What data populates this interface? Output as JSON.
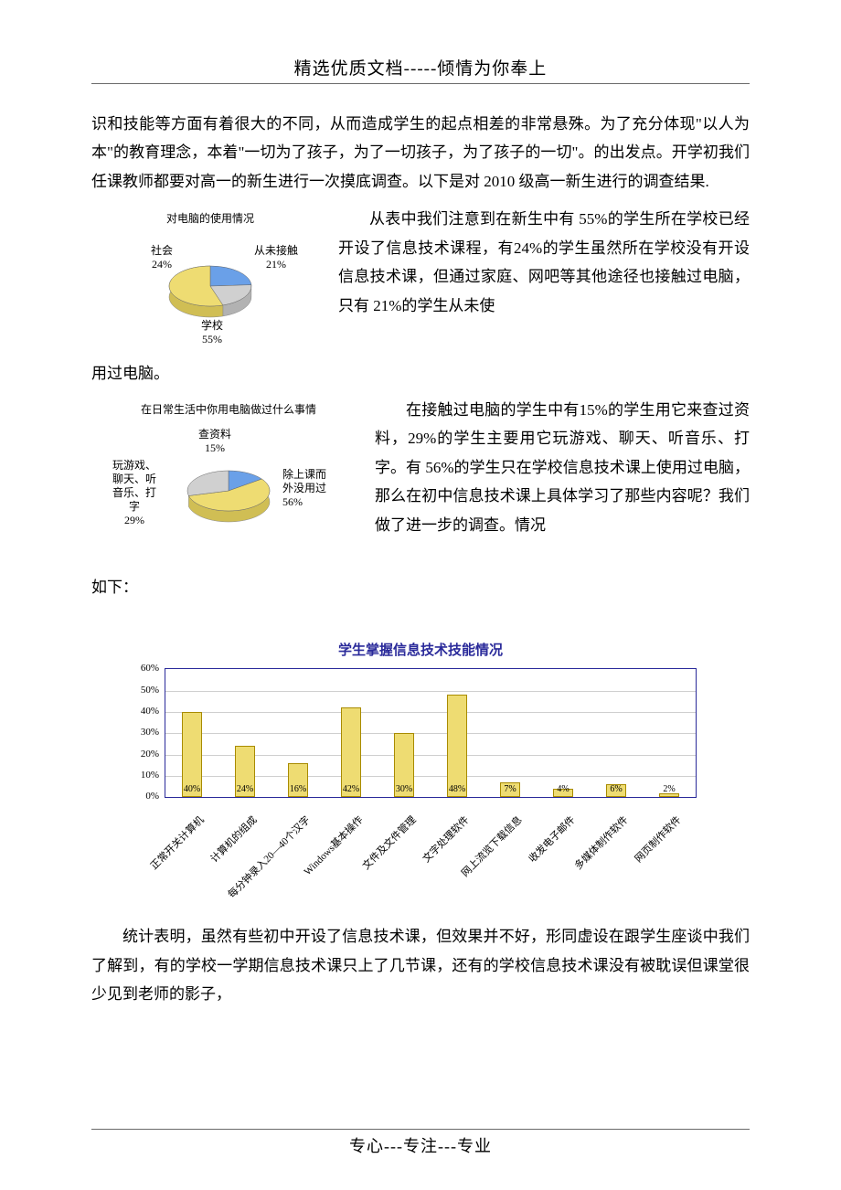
{
  "header": "精选优质文档-----倾情为你奉上",
  "footer": "专心---专注---专业",
  "para1": "识和技能等方面有着很大的不同，从而造成学生的起点相差的非常悬殊。为了充分体现\"以人为本\"的教育理念，本着\"一切为了孩子，为了一切孩子，为了孩子的一切\"。的出发点。开学初我们任课教师都要对高一的新生进行一次摸底调查。以下是对 2010 级高一新生进行的调查结果.",
  "side1": "从表中我们注意到在新生中有 55%的学生所在学校已经开设了信息技术课程，有24%的学生虽然所在学校没有开设信息技术课，但通过家庭、网吧等其他途径也接触过电脑，只有 21%的学生从未使",
  "cont1": "用过电脑。",
  "side2": "在接触过电脑的学生中有15%的学生用它来查过资料，29%的学生主要用它玩游戏、聊天、听音乐、打字。有 56%的学生只在学校信息技术课上使用过电脑，那么在初中信息技术课上具体学习了那些内容呢？我们做了进一步的调查。情况",
  "cont2": "如下：",
  "para3": "统计表明，虽然有些初中开设了信息技术课，但效果并不好，形同虚设在跟学生座谈中我们了解到，有的学校一学期信息技术课只上了几节课，还有的学校信息技术课没有被耽误但课堂很少见到老师的影子，",
  "pie1": {
    "title": "对电脑的使用情况",
    "slices": [
      {
        "name": "社会",
        "label": "社会\n24%",
        "value": 24,
        "color": "#6aa0e8"
      },
      {
        "name": "从未接触",
        "label": "从未接触\n21%",
        "value": 21,
        "color": "#d0d0d0"
      },
      {
        "name": "学校",
        "label": "学校\n55%",
        "value": 55,
        "color": "#eedc72"
      }
    ]
  },
  "pie2": {
    "title": "在日常生活中你用电脑做过什么事情",
    "slices": [
      {
        "name": "查资料",
        "label": "查资料\n15%",
        "value": 15,
        "color": "#6aa0e8"
      },
      {
        "name": "除上课而外没用过",
        "label": "除上课而\n外没用过\n56%",
        "value": 56,
        "color": "#eedc72"
      },
      {
        "name": "玩游戏聊天听音乐打字",
        "label": "玩游戏、\n聊天、听\n音乐、打\n字\n29%",
        "value": 29,
        "color": "#d0d0d0"
      }
    ]
  },
  "barchart": {
    "title": "学生掌握信息技术技能情况",
    "ymax": 60,
    "ystep": 10,
    "bar_color": "#eedc72",
    "bar_border": "#a88b00",
    "grid_color": "#cfcfcf",
    "frame_color": "#2a2a9a",
    "categories": [
      "正常开关计算机",
      "计算机的组成",
      "每分钟录入20—40个汉字",
      "Windows基本操作",
      "文件及文件管理",
      "文字处理软件",
      "网上流览下载信息",
      "收发电子邮件",
      "多媒体制作软件",
      "网页制作软件"
    ],
    "values": [
      40,
      24,
      16,
      42,
      30,
      48,
      7,
      4,
      6,
      2
    ],
    "labels": [
      "40%",
      "24%",
      "16%",
      "42%",
      "30%",
      "48%",
      "7%",
      "4%",
      "6%",
      "2%"
    ]
  }
}
